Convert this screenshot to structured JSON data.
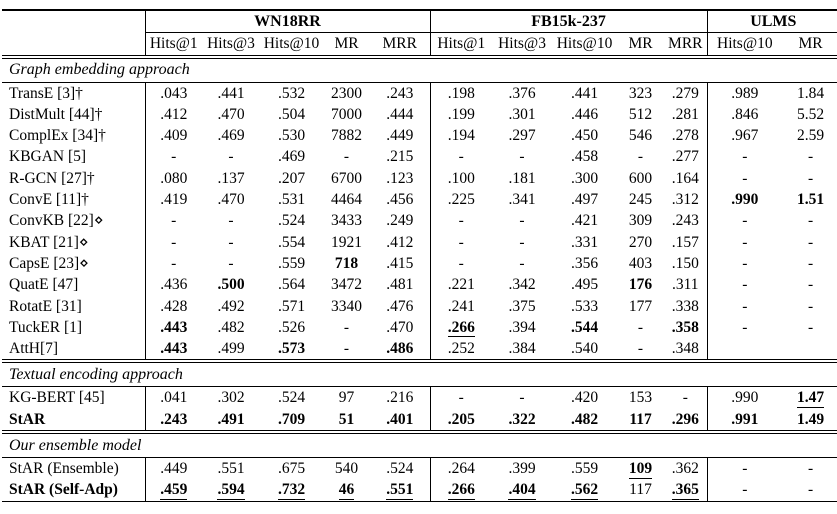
{
  "colors": {
    "text": "#000000",
    "background": "#ffffff",
    "rule": "#000000"
  },
  "table": {
    "groups": [
      {
        "label": "",
        "span": 1
      },
      {
        "label": "WN18RR",
        "span": 5
      },
      {
        "label": "FB15k-237",
        "span": 5
      },
      {
        "label": "ULMS",
        "span": 2
      }
    ],
    "columns": [
      "Hits@1",
      "Hits@3",
      "Hits@10",
      "MR",
      "MRR",
      "Hits@1",
      "Hits@3",
      "Hits@10",
      "MR",
      "MRR",
      "Hits@10",
      "MR"
    ],
    "sections": [
      {
        "title": "Graph embedding approach",
        "rows": [
          {
            "model": {
              "text": "TransE [3]†"
            },
            "values": [
              ".043",
              ".441",
              ".532",
              "2300",
              ".243",
              ".198",
              ".376",
              ".441",
              "323",
              ".279",
              ".989",
              "1.84"
            ]
          },
          {
            "model": {
              "text": "DistMult [44]†"
            },
            "values": [
              ".412",
              ".470",
              ".504",
              "7000",
              ".444",
              ".199",
              ".301",
              ".446",
              "512",
              ".281",
              ".846",
              "5.52"
            ]
          },
          {
            "model": {
              "text": "ComplEx [34]†"
            },
            "values": [
              ".409",
              ".469",
              ".530",
              "7882",
              ".449",
              ".194",
              ".297",
              ".450",
              "546",
              ".278",
              ".967",
              "2.59"
            ]
          },
          {
            "model": {
              "text": "KBGAN [5]"
            },
            "values": [
              "-",
              "-",
              ".469",
              "-",
              ".215",
              "-",
              "-",
              ".458",
              "-",
              ".277",
              "-",
              "-"
            ]
          },
          {
            "model": {
              "text": "R-GCN [27]†"
            },
            "values": [
              ".080",
              ".137",
              ".207",
              "6700",
              ".123",
              ".100",
              ".181",
              ".300",
              "600",
              ".164",
              "-",
              "-"
            ]
          },
          {
            "model": {
              "text": "ConvE [11]†"
            },
            "values": [
              ".419",
              ".470",
              ".531",
              "4464",
              ".456",
              ".225",
              ".341",
              ".497",
              "245",
              ".312",
              {
                "text": ".990",
                "bold": true
              },
              {
                "text": "1.51",
                "bold": true
              }
            ]
          },
          {
            "model": {
              "text": "ConvKB [22]⋄"
            },
            "values": [
              "-",
              "-",
              ".524",
              "3433",
              ".249",
              "-",
              "-",
              ".421",
              "309",
              ".243",
              "-",
              "-"
            ]
          },
          {
            "model": {
              "text": "KBAT [21]⋄"
            },
            "values": [
              "-",
              "-",
              ".554",
              "1921",
              ".412",
              "-",
              "-",
              ".331",
              "270",
              ".157",
              "-",
              "-"
            ]
          },
          {
            "model": {
              "text": "CapsE [23]⋄"
            },
            "values": [
              "-",
              "-",
              ".559",
              {
                "text": "718",
                "bold": true
              },
              ".415",
              "-",
              "-",
              ".356",
              "403",
              ".150",
              "-",
              "-"
            ]
          },
          {
            "model": {
              "text": "QuatE [47]"
            },
            "values": [
              ".436",
              {
                "text": ".500",
                "bold": true
              },
              ".564",
              "3472",
              ".481",
              ".221",
              ".342",
              ".495",
              {
                "text": "176",
                "bold": true
              },
              ".311",
              "-",
              "-"
            ]
          },
          {
            "model": {
              "text": "RotatE [31]"
            },
            "values": [
              ".428",
              ".492",
              ".571",
              "3340",
              ".476",
              ".241",
              ".375",
              ".533",
              "177",
              ".338",
              "-",
              "-"
            ]
          },
          {
            "model": {
              "text": "TuckER [1]"
            },
            "values": [
              {
                "text": ".443",
                "bold": true
              },
              ".482",
              ".526",
              "-",
              ".470",
              {
                "text": ".266",
                "bold": true,
                "underline": true
              },
              ".394",
              {
                "text": ".544",
                "bold": true
              },
              "-",
              {
                "text": ".358",
                "bold": true
              },
              "-",
              "-"
            ]
          },
          {
            "model": {
              "text": "AttH[7]"
            },
            "values": [
              {
                "text": ".443",
                "bold": true
              },
              ".499",
              {
                "text": ".573",
                "bold": true
              },
              "-",
              {
                "text": ".486",
                "bold": true
              },
              ".252",
              ".384",
              ".540",
              "-",
              ".348",
              "",
              ""
            ]
          }
        ]
      },
      {
        "title": "Textual encoding approach",
        "rows": [
          {
            "model": {
              "text": "KG-BERT [45]"
            },
            "values": [
              ".041",
              ".302",
              ".524",
              "97",
              ".216",
              "-",
              "-",
              ".420",
              "153",
              "-",
              ".990",
              {
                "text": "1.47",
                "bold": true,
                "underline": true
              }
            ]
          },
          {
            "model": {
              "text": "StAR",
              "bold": true
            },
            "values": [
              {
                "text": ".243",
                "bold": true
              },
              {
                "text": ".491",
                "bold": true
              },
              {
                "text": ".709",
                "bold": true
              },
              {
                "text": "51",
                "bold": true
              },
              {
                "text": ".401",
                "bold": true
              },
              {
                "text": ".205",
                "bold": true
              },
              {
                "text": ".322",
                "bold": true
              },
              {
                "text": ".482",
                "bold": true
              },
              {
                "text": "117",
                "bold": true
              },
              {
                "text": ".296",
                "bold": true
              },
              {
                "text": ".991",
                "bold": true
              },
              {
                "text": "1.49",
                "bold": true
              }
            ]
          }
        ]
      },
      {
        "title": "Our ensemble model",
        "rows": [
          {
            "model": {
              "text": "StAR (Ensemble)"
            },
            "values": [
              ".449",
              ".551",
              ".675",
              "540",
              ".524",
              ".264",
              ".399",
              ".559",
              {
                "text": "109",
                "bold": true,
                "underline": true
              },
              ".362",
              "-",
              "-"
            ]
          },
          {
            "model": {
              "text": "StAR (Self-Adp)",
              "bold": true
            },
            "values": [
              {
                "text": ".459",
                "bold": true,
                "underline": true
              },
              {
                "text": ".594",
                "bold": true,
                "underline": true
              },
              {
                "text": ".732",
                "bold": true,
                "underline": true
              },
              {
                "text": "46",
                "bold": true,
                "underline": true
              },
              {
                "text": ".551",
                "bold": true,
                "underline": true
              },
              {
                "text": ".266",
                "bold": true,
                "underline": true
              },
              {
                "text": ".404",
                "bold": true,
                "underline": true
              },
              {
                "text": ".562",
                "bold": true,
                "underline": true
              },
              "117",
              {
                "text": ".365",
                "bold": true,
                "underline": true
              },
              "-",
              "-"
            ]
          }
        ]
      }
    ]
  }
}
